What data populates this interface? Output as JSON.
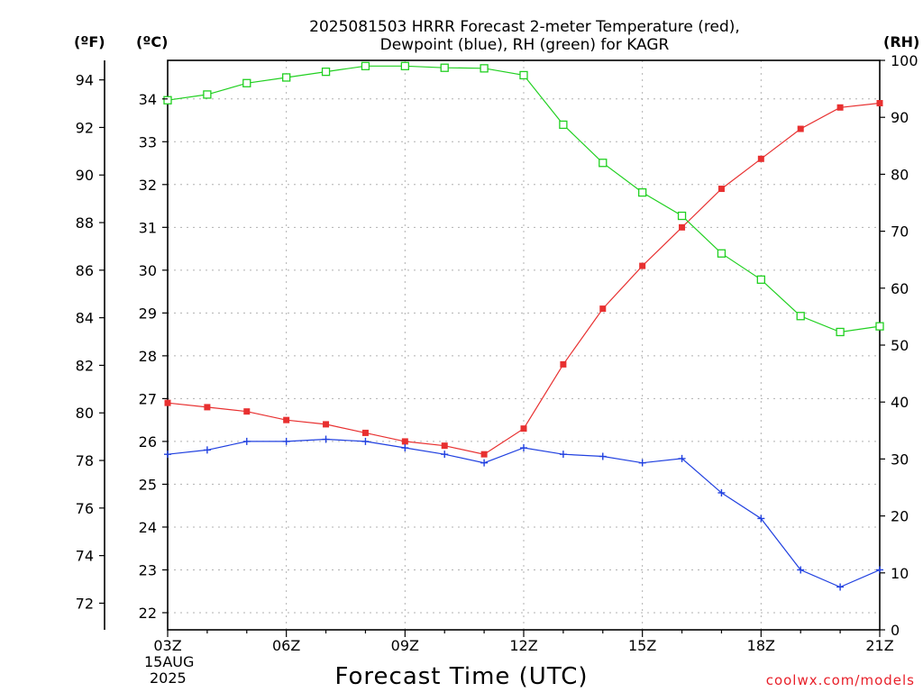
{
  "chart_data": {
    "type": "line",
    "title_line1": "2025081503 HRRR Forecast 2-meter Temperature (red),",
    "title_line2": "Dewpoint (blue), RH (green) for KAGR",
    "xlabel": "Forecast Time (UTC)",
    "credit": "coolwx.com/models",
    "axis_units": {
      "fahrenheit": "(ºF)",
      "celsius": "(ºC)",
      "rh": "(RH)"
    },
    "x_hours": [
      3,
      4,
      5,
      6,
      7,
      8,
      9,
      10,
      11,
      12,
      13,
      14,
      15,
      16,
      17,
      18,
      19,
      20,
      21
    ],
    "x_tick_labels": [
      {
        "hour": 3,
        "label": "03Z"
      },
      {
        "hour": 6,
        "label": "06Z"
      },
      {
        "hour": 9,
        "label": "09Z"
      },
      {
        "hour": 12,
        "label": "12Z"
      },
      {
        "hour": 15,
        "label": "15Z"
      },
      {
        "hour": 18,
        "label": "18Z"
      },
      {
        "hour": 21,
        "label": "21Z"
      }
    ],
    "date_label_line1": "15AUG",
    "date_label_line2": "2025",
    "xlim": [
      3,
      21
    ],
    "ylim_celsius": [
      21.6,
      34.9
    ],
    "ylim_rh": [
      0,
      100
    ],
    "celsius_ticks": [
      22,
      23,
      24,
      25,
      26,
      27,
      28,
      29,
      30,
      31,
      32,
      33,
      34
    ],
    "fahrenheit_ticks": [
      72,
      74,
      76,
      78,
      80,
      82,
      84,
      86,
      88,
      90,
      92,
      94
    ],
    "rh_ticks": [
      0,
      10,
      20,
      30,
      40,
      50,
      60,
      70,
      80,
      90,
      100
    ],
    "grid": true,
    "series": [
      {
        "axis": "celsius",
        "color": "#e83030",
        "marker": "filled-square",
        "values": [
          26.9,
          26.8,
          26.7,
          26.5,
          26.4,
          26.2,
          26.0,
          25.9,
          25.7,
          26.3,
          27.8,
          29.1,
          30.1,
          31.0,
          31.9,
          32.6,
          33.3,
          33.8,
          33.9
        ]
      },
      {
        "axis": "celsius",
        "color": "#2040e0",
        "marker": "plus",
        "values": [
          25.7,
          25.8,
          26.0,
          26.0,
          26.05,
          26.0,
          25.85,
          25.7,
          25.5,
          25.85,
          25.7,
          25.65,
          25.5,
          25.6,
          24.8,
          24.2,
          23.0,
          22.6,
          23.0
        ]
      },
      {
        "axis": "rh",
        "color": "#20d020",
        "marker": "open-square",
        "values": [
          93,
          94,
          96,
          97,
          98,
          99,
          99,
          98.7,
          98.6,
          97.4,
          88.7,
          82,
          76.8,
          72.7,
          66.1,
          61.5,
          55.1,
          52.3,
          53.3
        ]
      }
    ]
  }
}
